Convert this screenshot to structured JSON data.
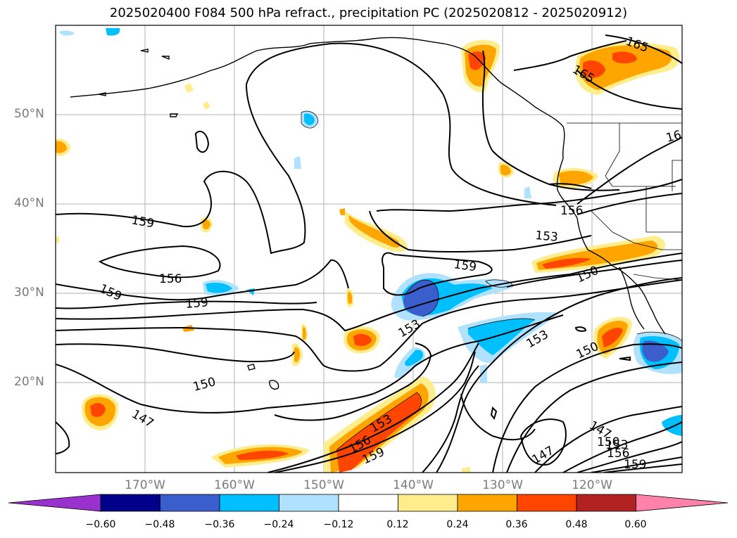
{
  "title": "2025020400 F084 500 hPa refract., precipitation PC (2025020812 - 2025020912)",
  "lat_labels": [
    "50°N",
    "40°N",
    "30°N",
    "20°N"
  ],
  "lon_labels": [
    "170°W",
    "160°W",
    "150°W",
    "140°W",
    "130°W",
    "120°W"
  ],
  "contour_labels": [
    "165",
    "165",
    "16",
    "156",
    "153",
    "159",
    "159",
    "156",
    "159",
    "159",
    "150",
    "153",
    "153",
    "150",
    "150",
    "147",
    "153",
    "156",
    "159",
    "147",
    "147",
    "150",
    "153",
    "156",
    "159"
  ],
  "colorbar": {
    "colors": [
      "#9932cc",
      "#00008b",
      "#3a5fcd",
      "#00bfff",
      "#b0e2ff",
      "#ffffff",
      "#ffec8b",
      "#ffa500",
      "#ff4500",
      "#b22222",
      "#ff82ab"
    ],
    "tick_labels": [
      "−0.60",
      "−0.48",
      "−0.36",
      "−0.24",
      "−0.12",
      "0.12",
      "0.24",
      "0.36",
      "0.48",
      "0.60"
    ]
  }
}
